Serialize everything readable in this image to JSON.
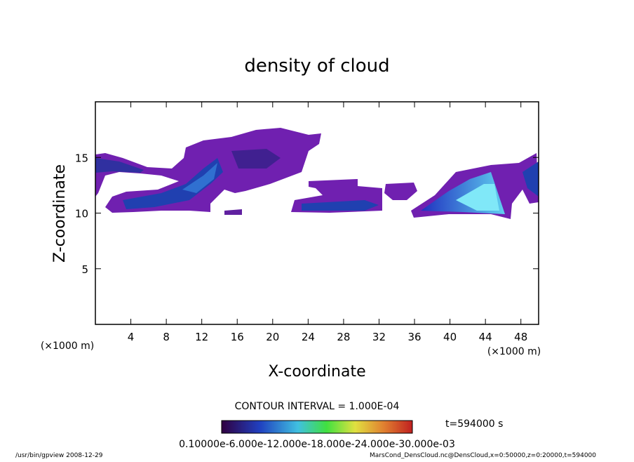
{
  "chart_data": {
    "type": "contour",
    "title": "density of cloud",
    "x_label": "X-coordinate",
    "y_label": "Z-coordinate",
    "x_unit": "(×1000 m)",
    "y_unit": "(×1000 m)",
    "xlim": [
      0,
      50
    ],
    "ylim": [
      0,
      20
    ],
    "xticks": [
      4,
      8,
      12,
      16,
      20,
      24,
      28,
      32,
      36,
      40,
      44,
      48
    ],
    "yticks": [
      5,
      10,
      15
    ],
    "contour_note": "CONTOUR INTERVAL = 1.000E-04",
    "time_label": "t=594000 s",
    "colorbar_labels": "0.10000e-6.000e-12.000e-18.000e-24.000e-30.000e-03",
    "footer_left": "/usr/bin/gpview   2008-12-29",
    "footer_right": "MarsCond_DensCloud.nc@DensCloud,x=0:50000,z=0:20000,t=594000"
  }
}
